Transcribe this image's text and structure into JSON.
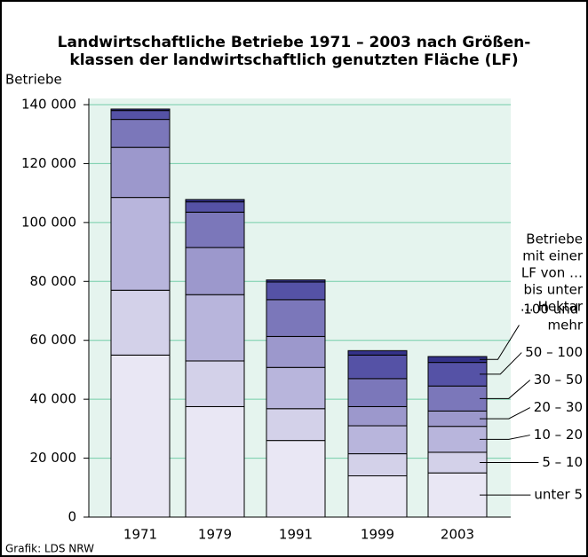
{
  "chart_data": {
    "type": "stacked_bar",
    "title": [
      "Landwirtschaftliche Betriebe 1971 – 2003 nach Größen-",
      "klassen der landwirtschaftlich genutzten Fläche (LF)"
    ],
    "y_label": "Betriebe",
    "source": "Grafik: LDS NRW",
    "legend_title": [
      "Betriebe",
      "mit einer",
      "LF von …",
      "bis unter",
      "… Hektar"
    ],
    "categories": [
      "1971",
      "1979",
      "1991",
      "1999",
      "2003"
    ],
    "series": [
      {
        "name": "unter 5",
        "color": "#e9e7f4",
        "values": [
          55000,
          37500,
          26000,
          14000,
          15000
        ]
      },
      {
        "name": "5 – 10",
        "color": "#d3d1e9",
        "values": [
          22000,
          15500,
          10800,
          7500,
          7000
        ]
      },
      {
        "name": "10 – 20",
        "color": "#b8b5dc",
        "values": [
          31500,
          22500,
          14000,
          9500,
          8800
        ]
      },
      {
        "name": "20 – 30",
        "color": "#9c98cc",
        "values": [
          17000,
          16000,
          10500,
          6500,
          5200
        ]
      },
      {
        "name": "30 – 50",
        "color": "#7b77ba",
        "values": [
          9500,
          12000,
          12500,
          9500,
          8500
        ]
      },
      {
        "name": "50 – 100",
        "color": "#5552a6",
        "values": [
          3000,
          3500,
          6000,
          8000,
          8000
        ]
      },
      {
        "name": "100 und mehr",
        "color": "#34328a",
        "values": [
          500,
          800,
          700,
          1500,
          2000
        ]
      }
    ],
    "ylim": [
      0,
      140000
    ],
    "yticks": [
      {
        "value": 0,
        "label": "0"
      },
      {
        "value": 20000,
        "label": "20 000"
      },
      {
        "value": 40000,
        "label": "40 000"
      },
      {
        "value": 60000,
        "label": "60 000"
      },
      {
        "value": 80000,
        "label": "80 000"
      },
      {
        "value": 100000,
        "label": "100 000"
      },
      {
        "value": 120000,
        "label": "120 000"
      },
      {
        "value": 140000,
        "label": "140 000"
      }
    ],
    "grid": true
  }
}
